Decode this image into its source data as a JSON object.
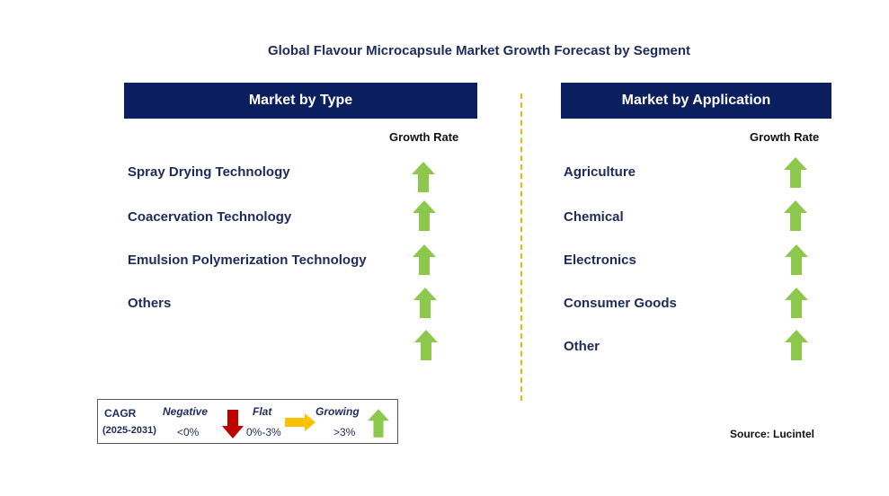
{
  "title": "Global Flavour Microcapsule Market Growth Forecast by Segment",
  "left_panel": {
    "header": "Market by Type",
    "growth_label": "Growth Rate",
    "rows": [
      {
        "label": "Spray Drying Technology",
        "trend": "growing"
      },
      {
        "label": "Coacervation Technology",
        "trend": "growing"
      },
      {
        "label": "Emulsion Polymerization Technology",
        "trend": "growing"
      },
      {
        "label": "Others",
        "trend": "growing"
      },
      {
        "label": "",
        "trend": "growing"
      }
    ]
  },
  "right_panel": {
    "header": "Market by Application",
    "growth_label": "Growth Rate",
    "rows": [
      {
        "label": "Agriculture",
        "trend": "growing"
      },
      {
        "label": "Chemical",
        "trend": "growing"
      },
      {
        "label": "Electronics",
        "trend": "growing"
      },
      {
        "label": "Consumer Goods",
        "trend": "growing"
      },
      {
        "label": "Other",
        "trend": "growing"
      }
    ]
  },
  "legend": {
    "cagr": "CAGR",
    "period": "(2025-2031)",
    "negative_label": "Negative",
    "negative_range": "<0%",
    "flat_label": "Flat",
    "flat_range": "0%-3%",
    "growing_label": "Growing",
    "growing_range": ">3%"
  },
  "source": "Source: Lucintel",
  "colors": {
    "header_bg": "#0b1f5f",
    "growing": "#8cc84b",
    "negative": "#c00000",
    "flat": "#ffc000",
    "divider": "#f5b400"
  },
  "icons": {
    "growing": "up-arrow-icon",
    "negative": "down-arrow-icon",
    "flat": "right-arrow-icon"
  }
}
